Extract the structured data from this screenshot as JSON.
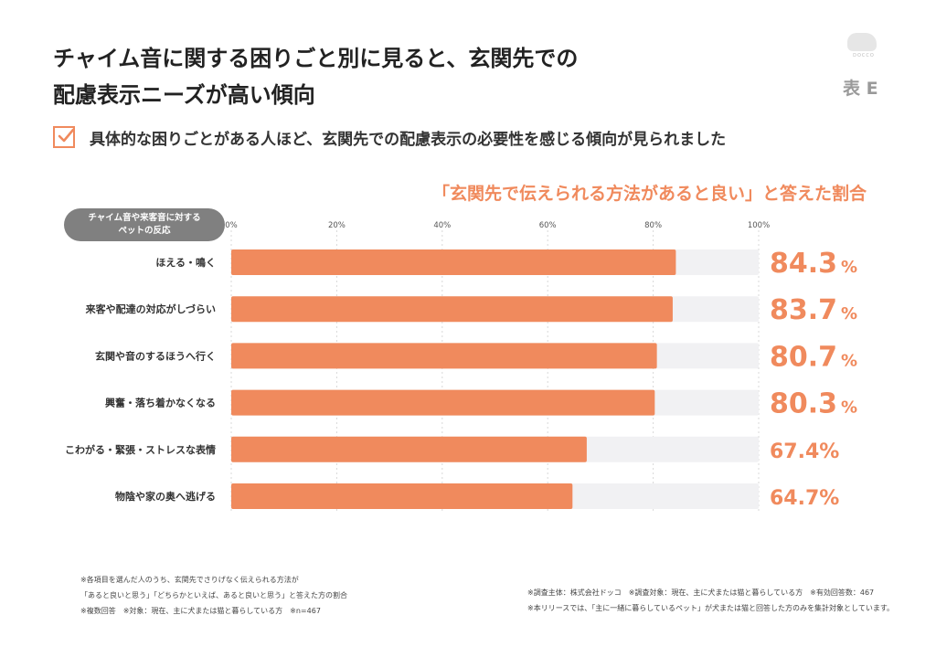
{
  "header": {
    "title_line1": "チャイム音に関する困りごと別に見ると、玄関先での",
    "title_line2": "配慮表示ニーズが高い傾向",
    "subtitle": "具体的な困りごとがある人ほど、玄関先での配慮表示の必要性を感じる傾向が見られました",
    "table_label": "表 E",
    "logo_text": "DOCCO",
    "logo_icon": "bear-icon",
    "check_icon": "checkmark-icon"
  },
  "chart_data": {
    "type": "bar",
    "orientation": "horizontal",
    "title": "「玄関先で伝えられる方法があると良い」と答えた割合",
    "category_axis_label_line1": "チャイム音や来客音に対する",
    "category_axis_label_line2": "ペットの反応",
    "categories": [
      "ほえる・鳴く",
      "来客や配達の対応がしづらい",
      "玄関や音のするほうへ行く",
      "興奮・落ち着かなくなる",
      "こわがる・緊張・ストレスな表情",
      "物陰や家の奥へ逃げる"
    ],
    "values": [
      84.3,
      83.7,
      80.7,
      80.3,
      67.4,
      64.7
    ],
    "value_labels": [
      "84.3",
      "83.7",
      "80.7",
      "80.3",
      "67.4%",
      "64.7%"
    ],
    "emphasized_unit": "%",
    "emphasized_count": 4,
    "x_ticks": [
      "0%",
      "20%",
      "40%",
      "60%",
      "80%",
      "100%"
    ],
    "xlim": [
      0,
      100
    ],
    "colors": {
      "bar": "#f08a5d",
      "track": "#f1f1f3",
      "grid": "#d8d8d8",
      "value_text": "#f08a5d"
    }
  },
  "footnotes": {
    "left": [
      "※各項目を選んだ人のうち、玄関先でさりげなく伝えられる方法が",
      "「あると良いと思う」「どちらかといえば、あると良いと思う」と答えた方の割合",
      "※複数回答　※対象：現在、主に犬または猫と暮らしている方　※n=467"
    ],
    "right": [
      "※調査主体：株式会社ドッコ　※調査対象：現在、主に犬または猫と暮らしている方　※有効回答数：467",
      "※本リリースでは、「主に一緒に暮らしているペット」が犬または猫と回答した方のみを集計対象としています。"
    ]
  }
}
